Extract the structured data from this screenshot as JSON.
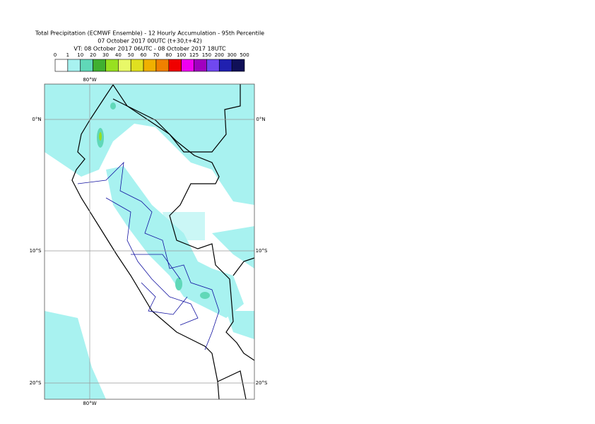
{
  "title": [
    "Total Precipitation (ECMWF Ensemble) - 12 Hourly Accumulation - 95th Percentile",
    "07 October 2017 00UTC (t+30,t+42)",
    "VT: 08 October 2017 06UTC - 08 October 2017 18UTC"
  ],
  "legend": {
    "thresholds": [
      0,
      1,
      10,
      20,
      30,
      40,
      50,
      60,
      70,
      80,
      100,
      125,
      150,
      200,
      300,
      500
    ],
    "colors": [
      "#ffffff",
      "#a8f2f0",
      "#60d8b8",
      "#40b030",
      "#98e020",
      "#e8f868",
      "#e0e020",
      "#f0b000",
      "#f08000",
      "#f00000",
      "#f000f0",
      "#a000c0",
      "#7048f0",
      "#2020b0",
      "#101058"
    ]
  },
  "map": {
    "lat_labels": [
      "0°N",
      "10°S",
      "20°S"
    ],
    "lon_labels": [
      "80°W"
    ]
  }
}
